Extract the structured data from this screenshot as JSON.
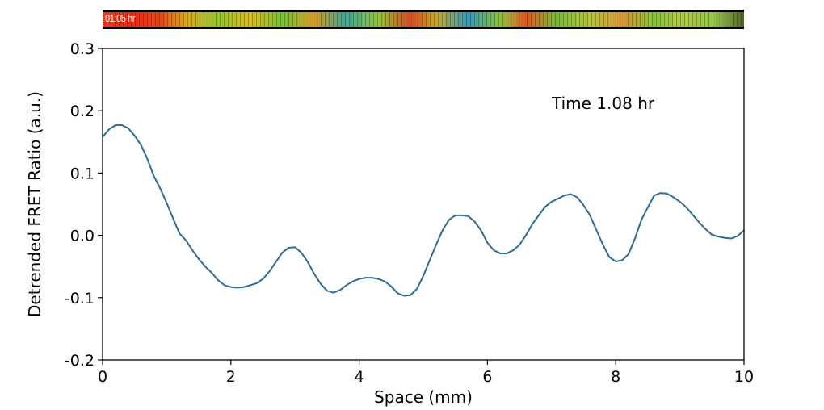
{
  "timelapse_strip": {
    "timestamp": "01:05 hr"
  },
  "chart_data": {
    "type": "line",
    "title": "",
    "xlabel": "Space (mm)",
    "ylabel": "Detrended FRET Ratio (a.u.)",
    "xlim": [
      0,
      10
    ],
    "ylim": [
      -0.2,
      0.3
    ],
    "xticks": [
      0,
      2,
      4,
      6,
      8,
      10
    ],
    "xtick_labels": [
      "0",
      "2",
      "4",
      "6",
      "8",
      "10"
    ],
    "yticks": [
      0.3,
      0.2,
      0.1,
      0.0,
      -0.1,
      -0.2
    ],
    "ytick_labels": [
      "0.3",
      "0.2",
      "0.1",
      "0.0",
      "-0.1",
      "-0.2"
    ],
    "grid": false,
    "line_color": "#2c6b9a",
    "annotation": "Time 1.08 hr",
    "series": [
      {
        "x": [
          0.0,
          0.1,
          0.2,
          0.3,
          0.4,
          0.5,
          0.6,
          0.7,
          0.8,
          0.9,
          1.0,
          1.1,
          1.2,
          1.3,
          1.4,
          1.5,
          1.6,
          1.7,
          1.8,
          1.9,
          2.0,
          2.1,
          2.2,
          2.3,
          2.4,
          2.5,
          2.6,
          2.7,
          2.8,
          2.9,
          3.0,
          3.1,
          3.2,
          3.3,
          3.4,
          3.5,
          3.6,
          3.7,
          3.8,
          3.9,
          4.0,
          4.1,
          4.2,
          4.3,
          4.4,
          4.5,
          4.6,
          4.7,
          4.8,
          4.9,
          5.0,
          5.1,
          5.2,
          5.3,
          5.4,
          5.5,
          5.6,
          5.7,
          5.8,
          5.9,
          6.0,
          6.1,
          6.2,
          6.3,
          6.4,
          6.5,
          6.6,
          6.7,
          6.8,
          6.9,
          7.0,
          7.1,
          7.2,
          7.3,
          7.4,
          7.5,
          7.6,
          7.7,
          7.8,
          7.9,
          8.0,
          8.1,
          8.2,
          8.3,
          8.4,
          8.5,
          8.6,
          8.7,
          8.8,
          8.9,
          9.0,
          9.1,
          9.2,
          9.3,
          9.4,
          9.5,
          9.6,
          9.7,
          9.8,
          9.9,
          10.0
        ],
        "y": [
          0.158,
          0.17,
          0.177,
          0.177,
          0.172,
          0.16,
          0.145,
          0.122,
          0.095,
          0.075,
          0.052,
          0.027,
          0.003,
          -0.008,
          -0.024,
          -0.038,
          -0.05,
          -0.06,
          -0.072,
          -0.08,
          -0.083,
          -0.084,
          -0.083,
          -0.08,
          -0.077,
          -0.07,
          -0.058,
          -0.043,
          -0.028,
          -0.02,
          -0.019,
          -0.028,
          -0.043,
          -0.062,
          -0.078,
          -0.089,
          -0.092,
          -0.088,
          -0.08,
          -0.074,
          -0.07,
          -0.068,
          -0.068,
          -0.07,
          -0.074,
          -0.082,
          -0.093,
          -0.097,
          -0.096,
          -0.086,
          -0.065,
          -0.04,
          -0.015,
          0.008,
          0.025,
          0.032,
          0.032,
          0.031,
          0.022,
          0.008,
          -0.012,
          -0.024,
          -0.029,
          -0.029,
          -0.024,
          -0.015,
          0.0,
          0.018,
          0.032,
          0.046,
          0.054,
          0.059,
          0.064,
          0.066,
          0.061,
          0.048,
          0.032,
          0.008,
          -0.015,
          -0.035,
          -0.042,
          -0.04,
          -0.03,
          -0.005,
          0.025,
          0.045,
          0.064,
          0.068,
          0.067,
          0.061,
          0.054,
          0.045,
          0.033,
          0.021,
          0.01,
          0.001,
          -0.002,
          -0.004,
          -0.005,
          -0.001,
          0.008
        ]
      }
    ]
  }
}
